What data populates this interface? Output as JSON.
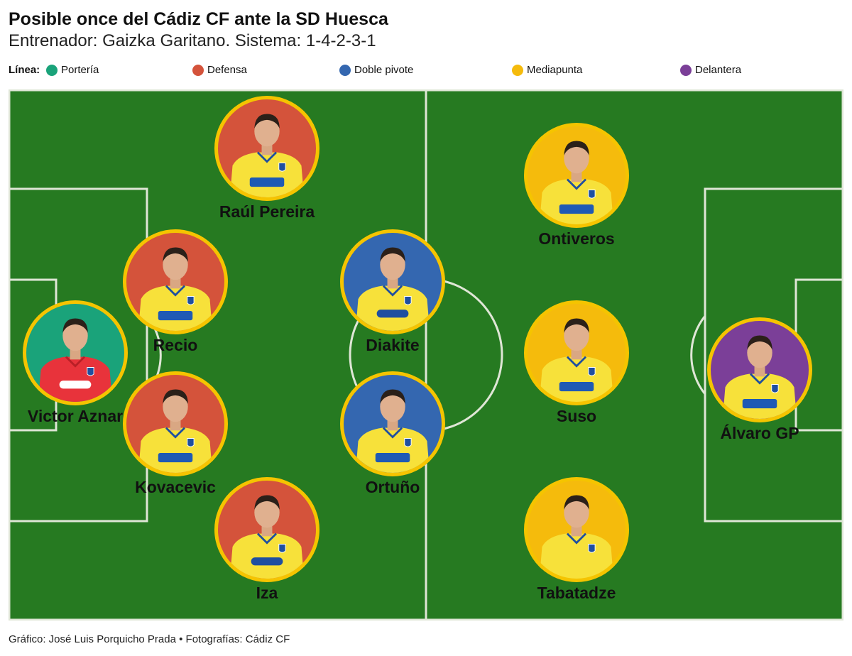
{
  "header": {
    "title": "Posible once del Cádiz CF ante la SD Huesca",
    "subtitle": "Entrenador: Gaizka Garitano. Sistema: 1-4-2-3-1"
  },
  "legend": {
    "title": "Línea:",
    "items": [
      {
        "label": "Portería",
        "color": "#1aa37a"
      },
      {
        "label": "Defensa",
        "color": "#d4533b"
      },
      {
        "label": "Doble pivote",
        "color": "#3467b0"
      },
      {
        "label": "Mediapunta",
        "color": "#f5bb0c"
      },
      {
        "label": "Delantera",
        "color": "#7b3f98"
      }
    ]
  },
  "pitch": {
    "grass_color": "#267a21",
    "line_color": "#dfe6d6"
  },
  "players": [
    {
      "name": "Victor Aznar",
      "line": "Portería",
      "shirt": "red-keeper"
    },
    {
      "name": "Raúl Pereira",
      "line": "Defensa",
      "shirt": "digi"
    },
    {
      "name": "Recio",
      "line": "Defensa",
      "shirt": "digi"
    },
    {
      "name": "Kovacevic",
      "line": "Defensa",
      "shirt": "digi"
    },
    {
      "name": "Iza",
      "line": "Defensa",
      "shirt": "silbo"
    },
    {
      "name": "Diakite",
      "line": "Doble pivote",
      "shirt": "silbo"
    },
    {
      "name": "Ortuño",
      "line": "Doble pivote",
      "shirt": "digi"
    },
    {
      "name": "Ontiveros",
      "line": "Mediapunta",
      "shirt": "digi"
    },
    {
      "name": "Suso",
      "line": "Mediapunta",
      "shirt": "digi"
    },
    {
      "name": "Tabatadze",
      "line": "Mediapunta",
      "shirt": "plain"
    },
    {
      "name": "Álvaro GP",
      "line": "Delantera",
      "shirt": "digi"
    }
  ],
  "footer": "Gráfico: José Luis Porquicho Prada • Fotografías: Cádiz CF"
}
